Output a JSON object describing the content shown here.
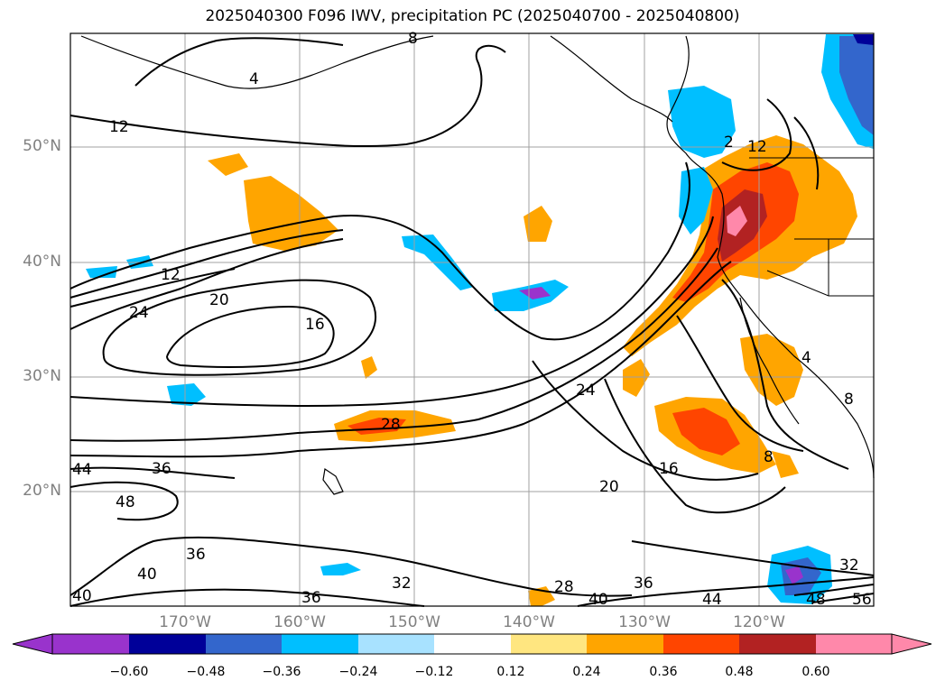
{
  "title": "2025040300 F096 IWV, precipitation PC (2025040700 - 2025040800)",
  "map": {
    "lat_ticks": [
      "50°N",
      "40°N",
      "30°N",
      "20°N"
    ],
    "lon_ticks": [
      "170°W",
      "160°W",
      "150°W",
      "140°W",
      "130°W",
      "120°W"
    ],
    "contour_labels": [
      "8",
      "4",
      "12",
      "20",
      "24",
      "16",
      "28",
      "24",
      "16",
      "20",
      "8",
      "4",
      "8",
      "12",
      "44",
      "36",
      "48",
      "36",
      "40",
      "40",
      "36",
      "32",
      "28",
      "40",
      "36",
      "44",
      "48",
      "32",
      "56",
      "12",
      "2"
    ],
    "grid": true
  },
  "colorbar": {
    "ticks": [
      "−0.60",
      "−0.48",
      "−0.36",
      "−0.24",
      "−0.12",
      "0.12",
      "0.24",
      "0.36",
      "0.48",
      "0.60"
    ],
    "colors": [
      "#9933cc",
      "#000099",
      "#3366cc",
      "#00bfff",
      "#a8e2ff",
      "#ffffff",
      "#ffe680",
      "#ffa500",
      "#ff4500",
      "#b22222",
      "#ff88aa"
    ]
  }
}
